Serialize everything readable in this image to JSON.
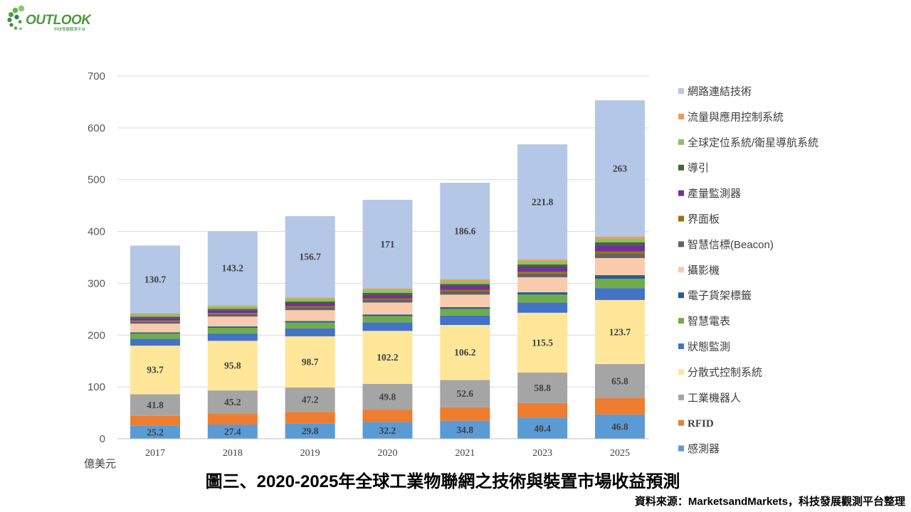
{
  "logo": {
    "text": "OUTLOOK",
    "subtext": "科技發展觀測平台"
  },
  "chart_data": {
    "type": "bar",
    "stacked": true,
    "title": "圖三、2020-2025年全球工業物聯網之技術與裝置市場收益預測",
    "source": "資料來源：MarketsandMarkets，科技發展觀測平台整理",
    "ylabel": "億美元",
    "ylim": [
      0,
      700
    ],
    "yticks": [
      0,
      100,
      200,
      300,
      400,
      500,
      600,
      700
    ],
    "grid": true,
    "legend_position": "right",
    "categories": [
      "2017",
      "2018",
      "2019",
      "2020",
      "2021",
      "2023",
      "2025"
    ],
    "series": [
      {
        "name": "感測器",
        "color": "#5b9bd5",
        "show_labels": true,
        "values": [
          25.2,
          27.4,
          29.8,
          32.2,
          34.8,
          40.4,
          46.8
        ]
      },
      {
        "name": "RFID",
        "color": "#ed7d31",
        "show_labels": false,
        "values": [
          19.0,
          20.6,
          22.0,
          24.0,
          26.0,
          28.5,
          31.5
        ]
      },
      {
        "name": "工業機器人",
        "color": "#a5a5a5",
        "show_labels": true,
        "values": [
          41.8,
          45.2,
          47.2,
          49.8,
          52.6,
          58.8,
          65.8
        ]
      },
      {
        "name": "分散式控制系統",
        "color": "#ffe699",
        "show_labels": true,
        "values": [
          93.7,
          95.8,
          98.7,
          102.2,
          106.2,
          115.5,
          123.7
        ]
      },
      {
        "name": "狀態監測",
        "color": "#4472c4",
        "show_labels": false,
        "values": [
          13.5,
          14.5,
          15.5,
          16.5,
          18.0,
          20.0,
          23.0
        ]
      },
      {
        "name": "智慧電表",
        "color": "#70ad47",
        "show_labels": false,
        "values": [
          9.5,
          10.5,
          11.0,
          12.0,
          13.0,
          15.0,
          18.0
        ]
      },
      {
        "name": "電子貨架標籤",
        "color": "#255e91",
        "show_labels": false,
        "values": [
          2.5,
          2.8,
          3.0,
          3.2,
          3.5,
          4.5,
          7.0
        ]
      },
      {
        "name": "攝影機",
        "color": "#f8cbad",
        "show_labels": false,
        "values": [
          17.0,
          19.0,
          21.0,
          23.0,
          24.0,
          29.0,
          33.0
        ]
      },
      {
        "name": "智慧信標(Beacon)",
        "color": "#636363",
        "show_labels": false,
        "values": [
          4.0,
          4.5,
          5.0,
          5.5,
          6.0,
          7.0,
          8.0
        ]
      },
      {
        "name": "界面板",
        "color": "#997300",
        "show_labels": false,
        "values": [
          2.0,
          2.3,
          2.5,
          2.7,
          3.0,
          3.5,
          4.5
        ]
      },
      {
        "name": "產量監測器",
        "color": "#7030a0",
        "show_labels": false,
        "values": [
          5.0,
          5.5,
          6.5,
          7.0,
          8.0,
          10.0,
          13.0
        ]
      },
      {
        "name": "導引",
        "color": "#43682b",
        "show_labels": false,
        "values": [
          2.5,
          2.7,
          3.0,
          3.3,
          3.5,
          4.2,
          5.0
        ]
      },
      {
        "name": "全球定位系統/衛星導航系統",
        "color": "#8cc168",
        "show_labels": false,
        "values": [
          4.5,
          4.8,
          5.5,
          6.3,
          6.2,
          7.0,
          7.0
        ]
      },
      {
        "name": "流量與應用控制系統",
        "color": "#f1975a",
        "show_labels": false,
        "values": [
          2.0,
          2.0,
          2.2,
          2.5,
          2.7,
          3.0,
          4.0
        ]
      },
      {
        "name": "網路連結技術",
        "color": "#b4c7e7",
        "show_labels": true,
        "values": [
          130.7,
          143.2,
          156.7,
          171,
          186.6,
          221.8,
          263
        ]
      }
    ]
  }
}
